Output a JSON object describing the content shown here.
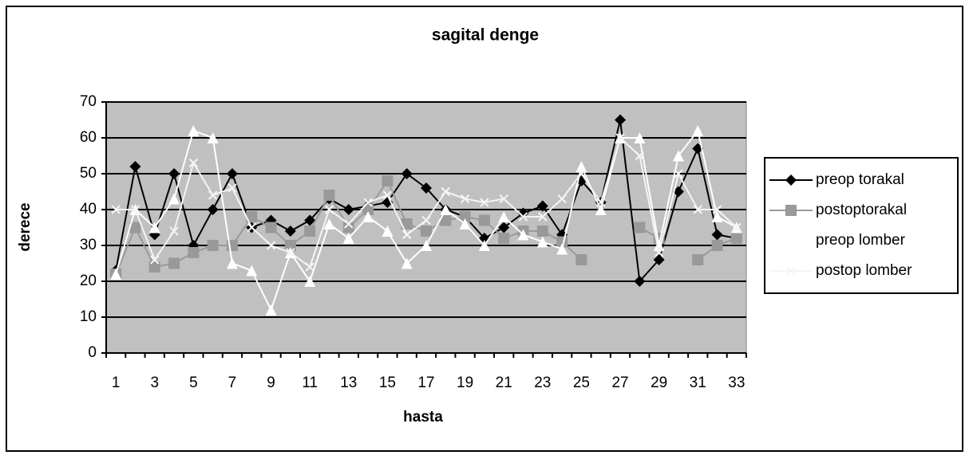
{
  "chart_data": {
    "type": "line",
    "title": "sagital denge",
    "x_label": "hasta",
    "y_label": "derece",
    "categories": [
      1,
      null,
      3,
      null,
      5,
      null,
      7,
      null,
      9,
      null,
      11,
      null,
      13,
      null,
      15,
      null,
      17,
      null,
      19,
      null,
      21,
      null,
      23,
      null,
      25,
      null,
      27,
      null,
      29,
      null,
      31,
      null,
      33
    ],
    "series": [
      {
        "name": "preop torakal",
        "color": "#000000",
        "marker": "diamond",
        "values": [
          23,
          52,
          33,
          50,
          30,
          40,
          50,
          35,
          37,
          34,
          37,
          43,
          40,
          41,
          42,
          50,
          46,
          40,
          38,
          32,
          35,
          39,
          41,
          33,
          48,
          42,
          65,
          20,
          26,
          45,
          57,
          33,
          32
        ]
      },
      {
        "name": "postoptorakal",
        "color": "#999999",
        "marker": "square",
        "values": [
          22,
          35,
          24,
          25,
          28,
          30,
          30,
          38,
          35,
          30,
          34,
          44,
          35,
          40,
          48,
          36,
          34,
          37,
          38,
          37,
          32,
          34,
          34,
          31,
          26,
          null,
          null,
          35,
          32,
          null,
          26,
          30,
          32
        ]
      },
      {
        "name": "preop lomber",
        "color": "#ffffff",
        "marker": "triangle",
        "values": [
          22,
          40,
          35,
          43,
          62,
          60,
          25,
          23,
          12,
          28,
          20,
          36,
          32,
          38,
          34,
          25,
          30,
          40,
          36,
          30,
          38,
          33,
          31,
          29,
          52,
          40,
          60,
          60,
          30,
          55,
          62,
          38,
          35
        ]
      },
      {
        "name": "postop lomber",
        "color": "#f4f4f4",
        "marker": "x",
        "values": [
          40,
          40,
          26,
          34,
          53,
          44,
          46,
          35,
          30,
          28,
          24,
          40,
          36,
          42,
          44,
          33,
          37,
          45,
          43,
          42,
          43,
          38,
          38,
          43,
          50,
          42,
          60,
          55,
          28,
          50,
          40,
          40,
          35
        ]
      }
    ],
    "ylim": [
      0,
      70
    ],
    "yticks": [
      0,
      10,
      20,
      30,
      40,
      50,
      60,
      70
    ],
    "grid": true,
    "plot_background": "#c0c0c0",
    "legend": "right"
  }
}
